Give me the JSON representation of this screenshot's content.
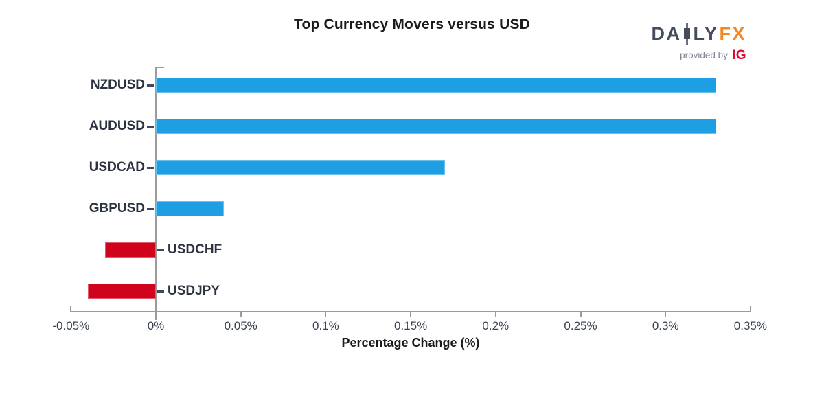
{
  "title": "Top Currency Movers versus USD",
  "logo": {
    "part1": "DA",
    "part2": "LY",
    "part3": "FX",
    "candle_icon": "candlestick-icon",
    "tagline": "provided by",
    "brand": "IG"
  },
  "colors": {
    "positive_bar": "#1e9ee3",
    "negative_bar": "#d0021c",
    "axis": "#9b9b9b",
    "category_label": "#2b3240",
    "tick_label": "#3b4453",
    "tick_dash": "#40485a",
    "title": "#1b1b1b",
    "logo_slate": "#454d5d",
    "logo_orange": "#f6861f",
    "logo_muted": "#7f8691",
    "logo_red": "#e10a2d"
  },
  "chart_data": {
    "type": "bar",
    "orientation": "horizontal",
    "title": "Top Currency Movers versus USD",
    "categories": [
      "NZDUSD",
      "AUDUSD",
      "USDCAD",
      "GBPUSD",
      "USDCHF",
      "USDJPY"
    ],
    "values": [
      0.33,
      0.33,
      0.17,
      0.04,
      -0.03,
      -0.04
    ],
    "unit": "%",
    "xlabel": "Percentage Change (%)",
    "xlim": [
      -0.05,
      0.35
    ],
    "x_ticks": [
      {
        "value": -0.05,
        "label": "-0.05%"
      },
      {
        "value": 0,
        "label": "0%"
      },
      {
        "value": 0.05,
        "label": "0.05%"
      },
      {
        "value": 0.1,
        "label": "0.1%"
      },
      {
        "value": 0.15,
        "label": "0.15%"
      },
      {
        "value": 0.2,
        "label": "0.2%"
      },
      {
        "value": 0.25,
        "label": "0.25%"
      },
      {
        "value": 0.3,
        "label": "0.3%"
      },
      {
        "value": 0.35,
        "label": "0.35%"
      }
    ],
    "grid": false,
    "legend": false,
    "bar_colors": {
      "positive": "#1e9ee3",
      "negative": "#d0021c"
    }
  }
}
